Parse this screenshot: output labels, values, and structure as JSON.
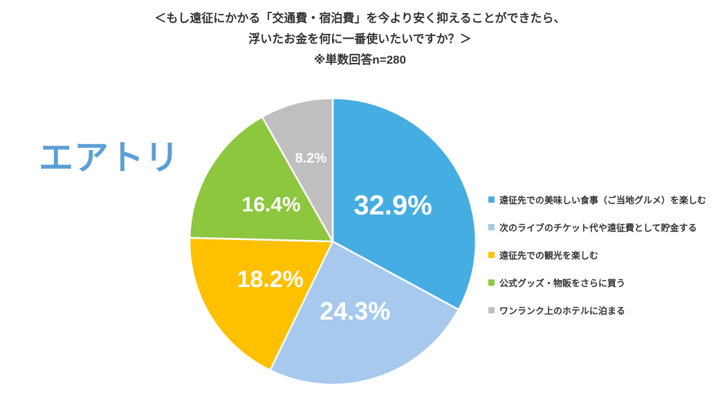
{
  "title": {
    "line1": "＜もし遠征にかかる「交通費・宿泊費」を今より安く抑えることができたら、",
    "line2": "浮いたお金を何に一番使いたいですか？＞",
    "line3": "※単数回答n=280"
  },
  "logo": {
    "text": "エアトリ",
    "color": "#5B9FD6"
  },
  "chart_data": {
    "type": "pie",
    "title": "＜もし遠征にかかる「交通費・宿泊費」を今より安く抑えることができたら、浮いたお金を何に一番使いたいですか？＞ ※単数回答n=280",
    "labels": [
      "遠征先での美味しい食事（ご当地グルメ）を楽しむ",
      "次のライブのチケット代や遠征費として貯金する",
      "遠征先での観光を楽しむ",
      "公式グッズ・物販をさらに買う",
      "ワンランク上のホテルに泊まる"
    ],
    "values": [
      32.9,
      24.3,
      18.2,
      16.4,
      8.2
    ],
    "value_labels": [
      "32.9%",
      "24.3%",
      "18.2%",
      "16.4%",
      "8.2%"
    ],
    "colors": [
      "#45ADE2",
      "#A6C9ED",
      "#FFC000",
      "#8DC63F",
      "#BFBFBF"
    ],
    "start_angle_deg": 0,
    "direction": "clockwise",
    "legend_position": "right",
    "label_color": "#FFFFFF",
    "n": 280
  }
}
